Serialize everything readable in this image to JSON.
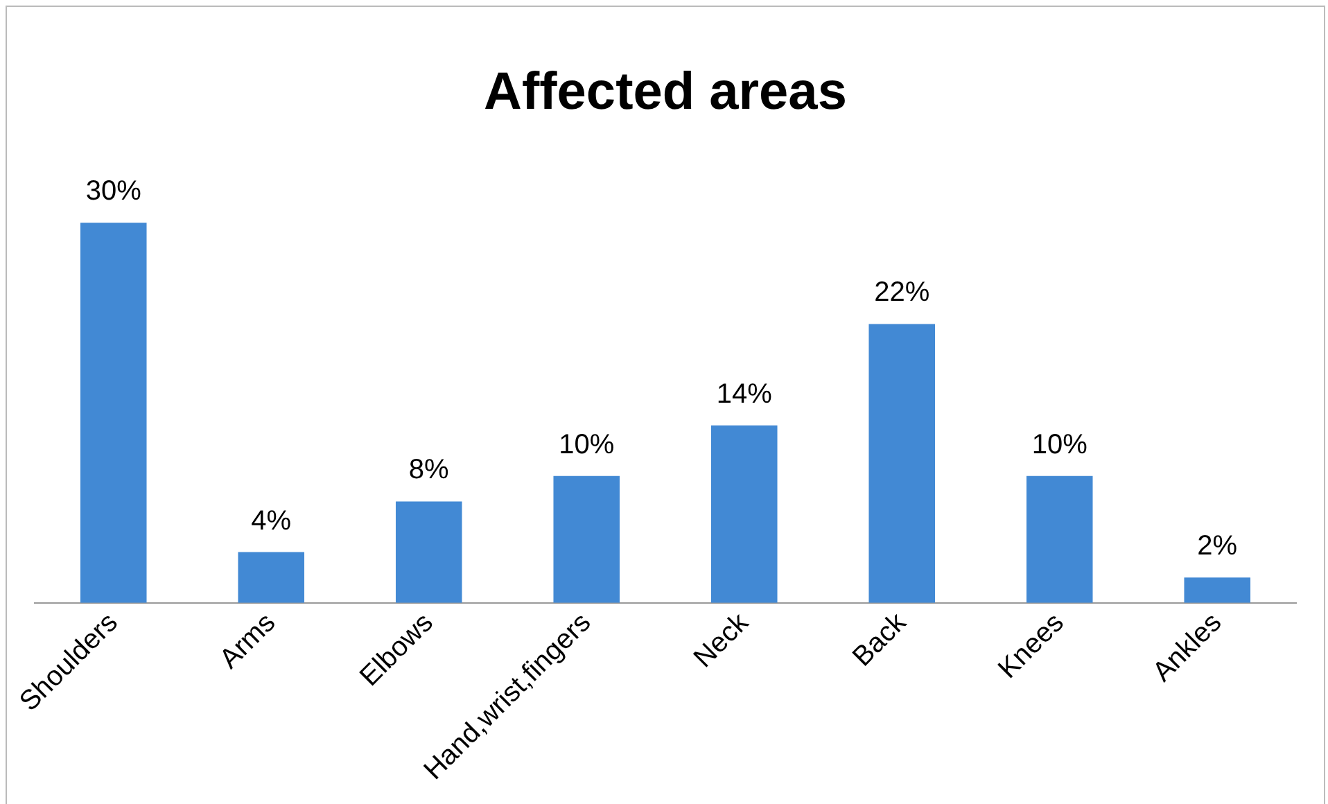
{
  "chart_data": {
    "type": "bar",
    "title": "Affected areas",
    "categories": [
      "Shoulders",
      "Arms",
      "Elbows",
      "Hand,wrist,fingers",
      "Neck",
      "Back",
      "Knees",
      "Ankles"
    ],
    "values": [
      30,
      4,
      8,
      10,
      14,
      22,
      10,
      2
    ],
    "value_labels": [
      "30%",
      "4%",
      "8%",
      "10%",
      "14%",
      "22%",
      "10%",
      "2%"
    ],
    "color": "#4289d4",
    "grid": false,
    "legend": false
  }
}
